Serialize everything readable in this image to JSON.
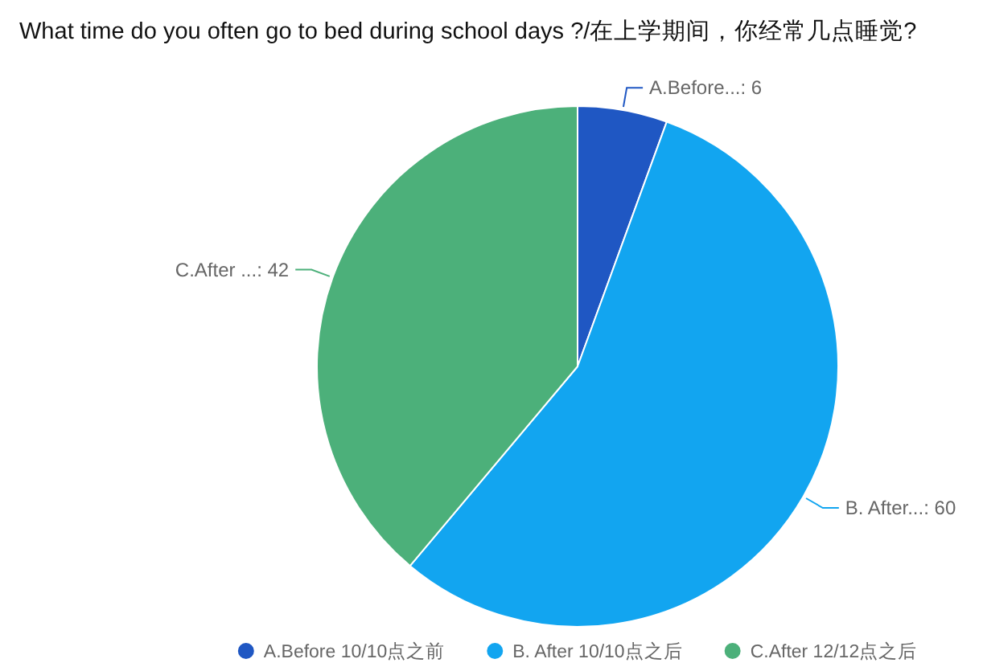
{
  "chart_data": {
    "type": "pie",
    "title": "What time do you often go to bed during school days ?/在上学期间，你经常几点睡觉?",
    "categories": [
      "A.Before 10/10点之前",
      "B. After 10/10点之后",
      "C.After 12/12点之后"
    ],
    "values": [
      6,
      60,
      42
    ],
    "colors": [
      "#1f57c3",
      "#12a5f0",
      "#4cb07a"
    ],
    "value_labels": [
      "A.Before...: 6",
      "B. After...: 60",
      "C.After ...: 42"
    ],
    "legend": "bottom"
  }
}
